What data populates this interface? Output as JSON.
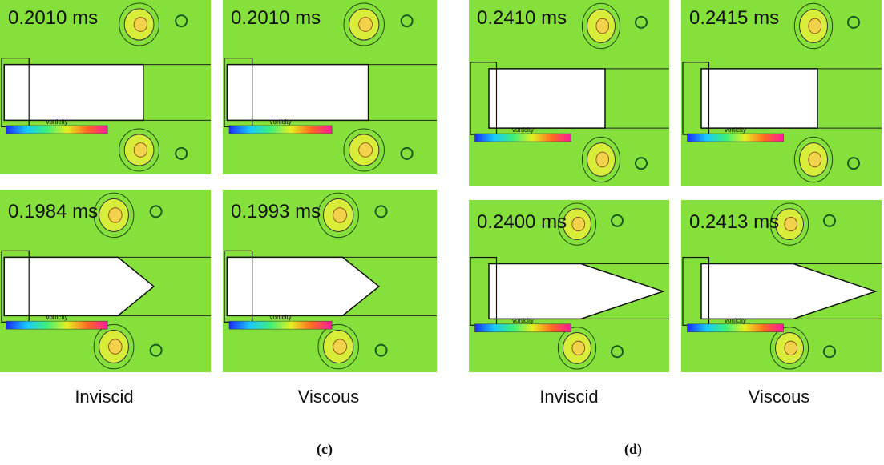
{
  "figure": {
    "colorbar_label": "vorticity",
    "groups": [
      {
        "label": "(c)",
        "columns": [
          "Inviscid",
          "Viscous"
        ],
        "panels": [
          {
            "time": "0.2010 ms"
          },
          {
            "time": "0.2010 ms"
          },
          {
            "time": "0.1984 ms"
          },
          {
            "time": "0.1993 ms"
          }
        ]
      },
      {
        "label": "(d)",
        "columns": [
          "Inviscid",
          "Viscous"
        ],
        "panels": [
          {
            "time": "0.2410 ms"
          },
          {
            "time": "0.2415 ms"
          },
          {
            "time": "0.2400 ms"
          },
          {
            "time": "0.2413 ms"
          }
        ]
      }
    ]
  }
}
